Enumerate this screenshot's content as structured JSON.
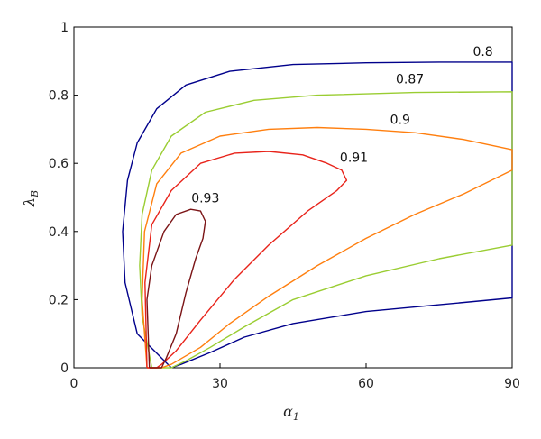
{
  "chart_data": {
    "type": "line",
    "title": "",
    "xlabel": "α",
    "xlabel_sub": "1",
    "ylabel": "λ",
    "ylabel_sub": "B",
    "xlim": [
      0,
      90
    ],
    "ylim": [
      0,
      1
    ],
    "xticks": [
      "0",
      "30",
      "60",
      "90"
    ],
    "yticks": [
      "0",
      "0.2",
      "0.4",
      "0.6",
      "0.8",
      "1"
    ],
    "grid": false,
    "legend": "none",
    "series": [
      {
        "name": "0.8",
        "label_at": [
          84,
          0.915
        ],
        "color": "#00008B",
        "points": [
          [
            20,
            0
          ],
          [
            13,
            0.1
          ],
          [
            10.5,
            0.25
          ],
          [
            10,
            0.4
          ],
          [
            11,
            0.55
          ],
          [
            13,
            0.66
          ],
          [
            17,
            0.76
          ],
          [
            23,
            0.83
          ],
          [
            32,
            0.87
          ],
          [
            45,
            0.89
          ],
          [
            60,
            0.895
          ],
          [
            75,
            0.897
          ],
          [
            90,
            0.897
          ],
          [
            90,
            0.205
          ],
          [
            75,
            0.185
          ],
          [
            60,
            0.165
          ],
          [
            45,
            0.13
          ],
          [
            35,
            0.09
          ],
          [
            28,
            0.045
          ],
          [
            22,
            0.01
          ],
          [
            20,
            0
          ]
        ]
      },
      {
        "name": "0.87",
        "label_at": [
          69,
          0.835
        ],
        "color": "#9ACD32",
        "points": [
          [
            16,
            0
          ],
          [
            14,
            0.15
          ],
          [
            13.5,
            0.3
          ],
          [
            14,
            0.45
          ],
          [
            16,
            0.58
          ],
          [
            20,
            0.68
          ],
          [
            27,
            0.75
          ],
          [
            37,
            0.785
          ],
          [
            50,
            0.8
          ],
          [
            70,
            0.808
          ],
          [
            90,
            0.81
          ],
          [
            90,
            0.36
          ],
          [
            75,
            0.32
          ],
          [
            60,
            0.27
          ],
          [
            45,
            0.2
          ],
          [
            35,
            0.12
          ],
          [
            28,
            0.06
          ],
          [
            23,
            0.02
          ],
          [
            20,
            0
          ],
          [
            16,
            0
          ]
        ]
      },
      {
        "name": "0.9",
        "label_at": [
          67,
          0.715
        ],
        "color": "#FF7F0F",
        "points": [
          [
            15,
            0
          ],
          [
            14,
            0.2
          ],
          [
            14.5,
            0.4
          ],
          [
            17,
            0.54
          ],
          [
            22,
            0.63
          ],
          [
            30,
            0.68
          ],
          [
            40,
            0.7
          ],
          [
            50,
            0.705
          ],
          [
            60,
            0.7
          ],
          [
            70,
            0.69
          ],
          [
            80,
            0.67
          ],
          [
            90,
            0.64
          ],
          [
            90,
            0.58
          ],
          [
            80,
            0.51
          ],
          [
            70,
            0.45
          ],
          [
            60,
            0.38
          ],
          [
            50,
            0.3
          ],
          [
            40,
            0.21
          ],
          [
            32,
            0.13
          ],
          [
            26,
            0.06
          ],
          [
            20,
            0.01
          ],
          [
            18,
            0
          ],
          [
            15,
            0
          ]
        ]
      },
      {
        "name": "0.91",
        "label_at": [
          57.5,
          0.605
        ],
        "color": "#E8231A",
        "points": [
          [
            15,
            0
          ],
          [
            14.6,
            0.25
          ],
          [
            16,
            0.42
          ],
          [
            20,
            0.52
          ],
          [
            26,
            0.6
          ],
          [
            33,
            0.63
          ],
          [
            40,
            0.635
          ],
          [
            47,
            0.625
          ],
          [
            52,
            0.6
          ],
          [
            55,
            0.58
          ],
          [
            56,
            0.55
          ],
          [
            54,
            0.52
          ],
          [
            48,
            0.46
          ],
          [
            40,
            0.36
          ],
          [
            33,
            0.26
          ],
          [
            26,
            0.14
          ],
          [
            21,
            0.05
          ],
          [
            18,
            0.01
          ],
          [
            17,
            0
          ],
          [
            15,
            0
          ]
        ]
      },
      {
        "name": "0.93",
        "label_at": [
          27,
          0.485
        ],
        "color": "#7B1416",
        "points": [
          [
            15.5,
            0
          ],
          [
            15,
            0.2
          ],
          [
            16,
            0.3
          ],
          [
            18.5,
            0.4
          ],
          [
            21,
            0.45
          ],
          [
            24,
            0.465
          ],
          [
            26,
            0.46
          ],
          [
            27,
            0.43
          ],
          [
            26.5,
            0.38
          ],
          [
            25,
            0.32
          ],
          [
            23,
            0.22
          ],
          [
            21,
            0.1
          ],
          [
            19,
            0.03
          ],
          [
            18,
            0
          ],
          [
            15.5,
            0
          ]
        ]
      }
    ]
  }
}
